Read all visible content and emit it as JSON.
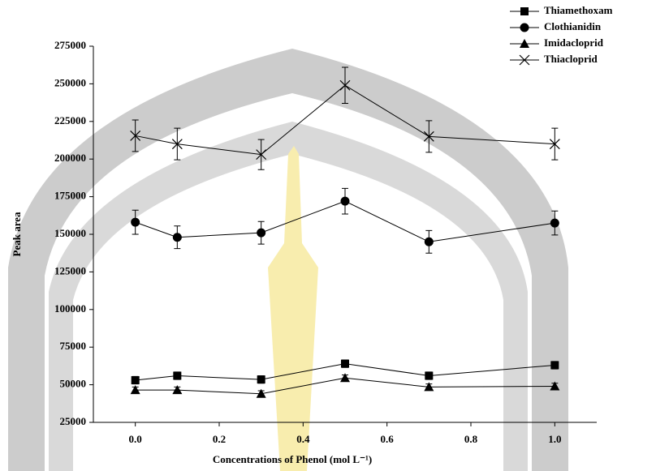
{
  "chart_data": {
    "type": "line",
    "x_label": "Concentrations of Phenol (mol L⁻¹)",
    "y_label": "Peak area",
    "x": [
      0,
      0.1,
      0.3,
      0.5,
      0.7,
      1.0
    ],
    "series": [
      {
        "name": "Thiamethoxam",
        "color": "#000000",
        "marker": "square",
        "values": [
          53000,
          56000,
          53500,
          64000,
          56000,
          63000
        ],
        "errors": [
          2500,
          2500,
          2500,
          2500,
          2500,
          2500
        ]
      },
      {
        "name": "Clothianidin",
        "color": "#000000",
        "marker": "circle",
        "values": [
          158000,
          148000,
          151000,
          172000,
          145000,
          157500
        ],
        "errors": [
          8000,
          7500,
          7500,
          8500,
          7500,
          8000
        ]
      },
      {
        "name": "Imidacloprid",
        "color": "#000000",
        "marker": "triangle",
        "values": [
          46500,
          46500,
          44000,
          54500,
          48500,
          49000
        ],
        "errors": [
          2000,
          2000,
          2000,
          2000,
          2000,
          2000
        ]
      },
      {
        "name": "Thiacloprid",
        "color": "#000000",
        "marker": "cross",
        "values": [
          215500,
          210000,
          203000,
          249000,
          215000,
          210000
        ],
        "errors": [
          10500,
          10500,
          10000,
          12000,
          10500,
          10500
        ]
      }
    ],
    "xlim": [
      -0.1,
      1.1
    ],
    "ylim": [
      25000,
      275000
    ],
    "xticks": [
      {
        "value": 0,
        "label": "0.0"
      },
      0.2,
      0.4,
      0.6,
      0.8,
      {
        "value": 1,
        "label": "1.0"
      }
    ],
    "yticks": [
      25000,
      50000,
      75000,
      100000,
      125000,
      150000,
      175000,
      200000,
      225000,
      250000,
      275000
    ],
    "legend": "top-right"
  }
}
